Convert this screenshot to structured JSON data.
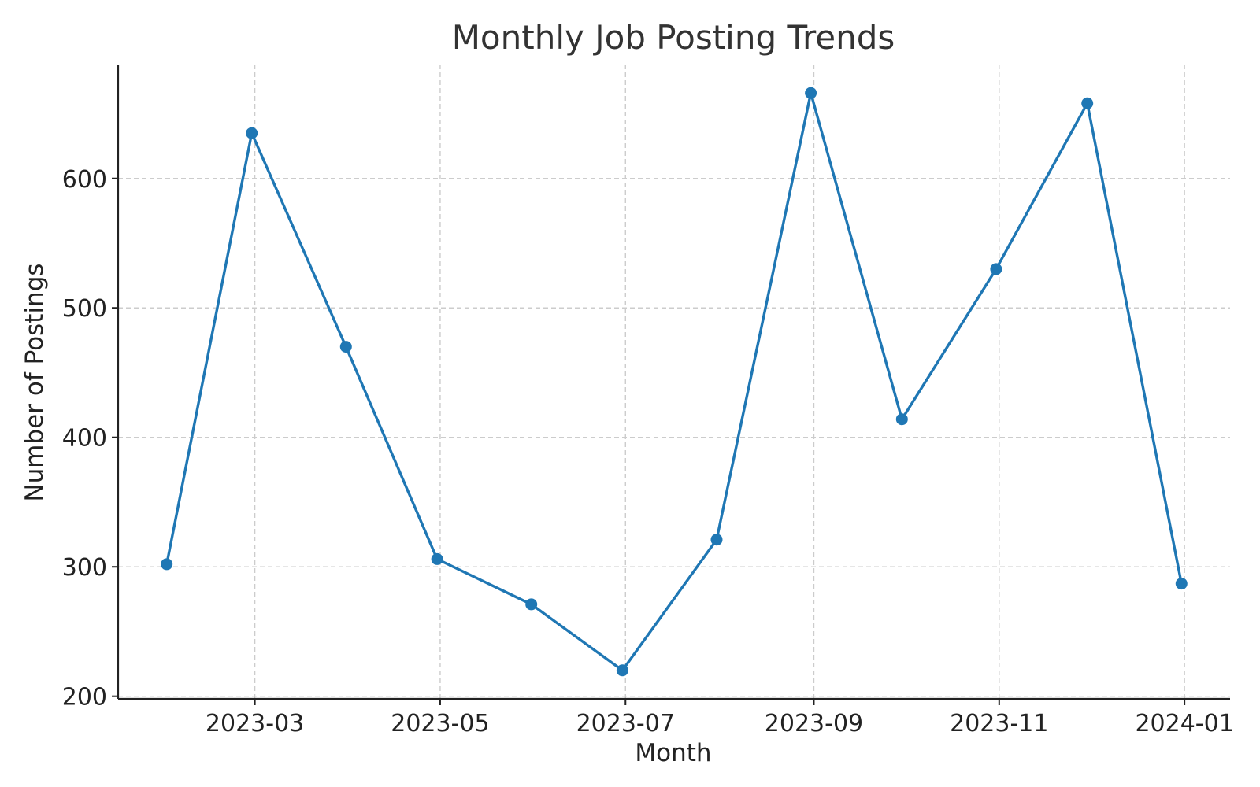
{
  "chart_data": {
    "type": "line",
    "title": "Monthly Job Posting Trends",
    "xlabel": "Month",
    "ylabel": "Number of Postings",
    "x": [
      "2023-01-31",
      "2023-02-28",
      "2023-03-31",
      "2023-04-30",
      "2023-05-31",
      "2023-06-30",
      "2023-07-31",
      "2023-08-31",
      "2023-09-30",
      "2023-10-31",
      "2023-11-30",
      "2023-12-31"
    ],
    "series": [
      {
        "values": [
          302,
          635,
          470,
          306,
          271,
          220,
          321,
          666,
          414,
          530,
          658,
          287
        ],
        "color": "#1f77b4"
      }
    ],
    "xticks": [
      "2023-03",
      "2023-05",
      "2023-07",
      "2023-09",
      "2023-11",
      "2024-01"
    ],
    "yticks": [
      200,
      300,
      400,
      500,
      600
    ],
    "xlim": [
      "2023-01-15",
      "2024-01-16"
    ],
    "ylim": [
      198,
      688
    ],
    "grid": true,
    "legend": null
  }
}
